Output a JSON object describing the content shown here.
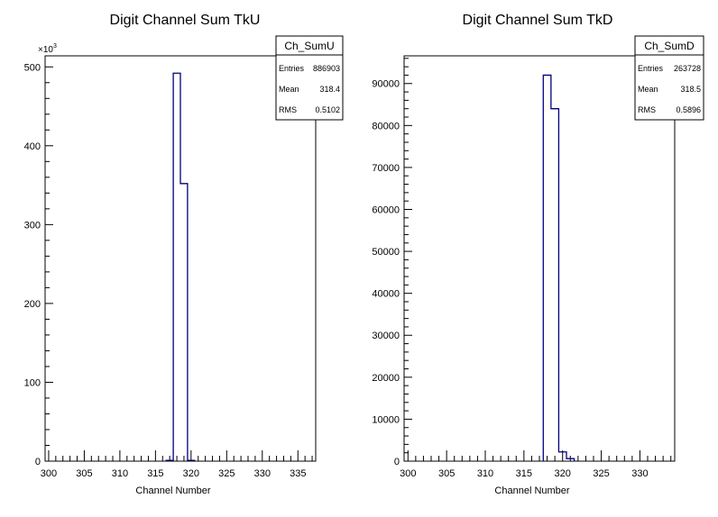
{
  "chart_data": [
    {
      "type": "bar",
      "title": "Digit Channel Sum TkU",
      "xlabel": "Channel Number",
      "ylabel": "",
      "y_multiplier_label": "×10",
      "y_multiplier_exp": "3",
      "xlim": [
        299.5,
        337.5
      ],
      "ylim": [
        0,
        514
      ],
      "x_ticks": [
        300,
        305,
        310,
        315,
        320,
        325,
        330,
        335
      ],
      "y_ticks": [
        0,
        100,
        200,
        300,
        400,
        500
      ],
      "bin_width": 1,
      "bins": [
        {
          "x": 317,
          "value": 1
        },
        {
          "x": 318,
          "value": 492
        },
        {
          "x": 319,
          "value": 352
        },
        {
          "x": 320,
          "value": 1
        }
      ],
      "stats": {
        "name": "Ch_SumU",
        "rows": [
          {
            "label": "Entries",
            "value": "886903"
          },
          {
            "label": "Mean",
            "value": "318.4"
          },
          {
            "label": "RMS",
            "value": "0.5102"
          }
        ]
      },
      "line_color": "#000080"
    },
    {
      "type": "bar",
      "title": "Digit Channel Sum TkD",
      "xlabel": "Channel Number",
      "ylabel": "",
      "xlim": [
        299.5,
        334.5
      ],
      "ylim": [
        0,
        96600
      ],
      "x_ticks": [
        300,
        305,
        310,
        315,
        320,
        325,
        330
      ],
      "y_ticks": [
        0,
        10000,
        20000,
        30000,
        40000,
        50000,
        60000,
        70000,
        80000,
        90000
      ],
      "bin_width": 1,
      "bins": [
        {
          "x": 318,
          "value": 92000
        },
        {
          "x": 319,
          "value": 84000
        },
        {
          "x": 320,
          "value": 2200
        },
        {
          "x": 321,
          "value": 600
        }
      ],
      "stats": {
        "name": "Ch_SumD",
        "rows": [
          {
            "label": "Entries",
            "value": "263728"
          },
          {
            "label": "Mean",
            "value": "318.5"
          },
          {
            "label": "RMS",
            "value": "0.5896"
          }
        ]
      },
      "line_color": "#000080"
    }
  ]
}
